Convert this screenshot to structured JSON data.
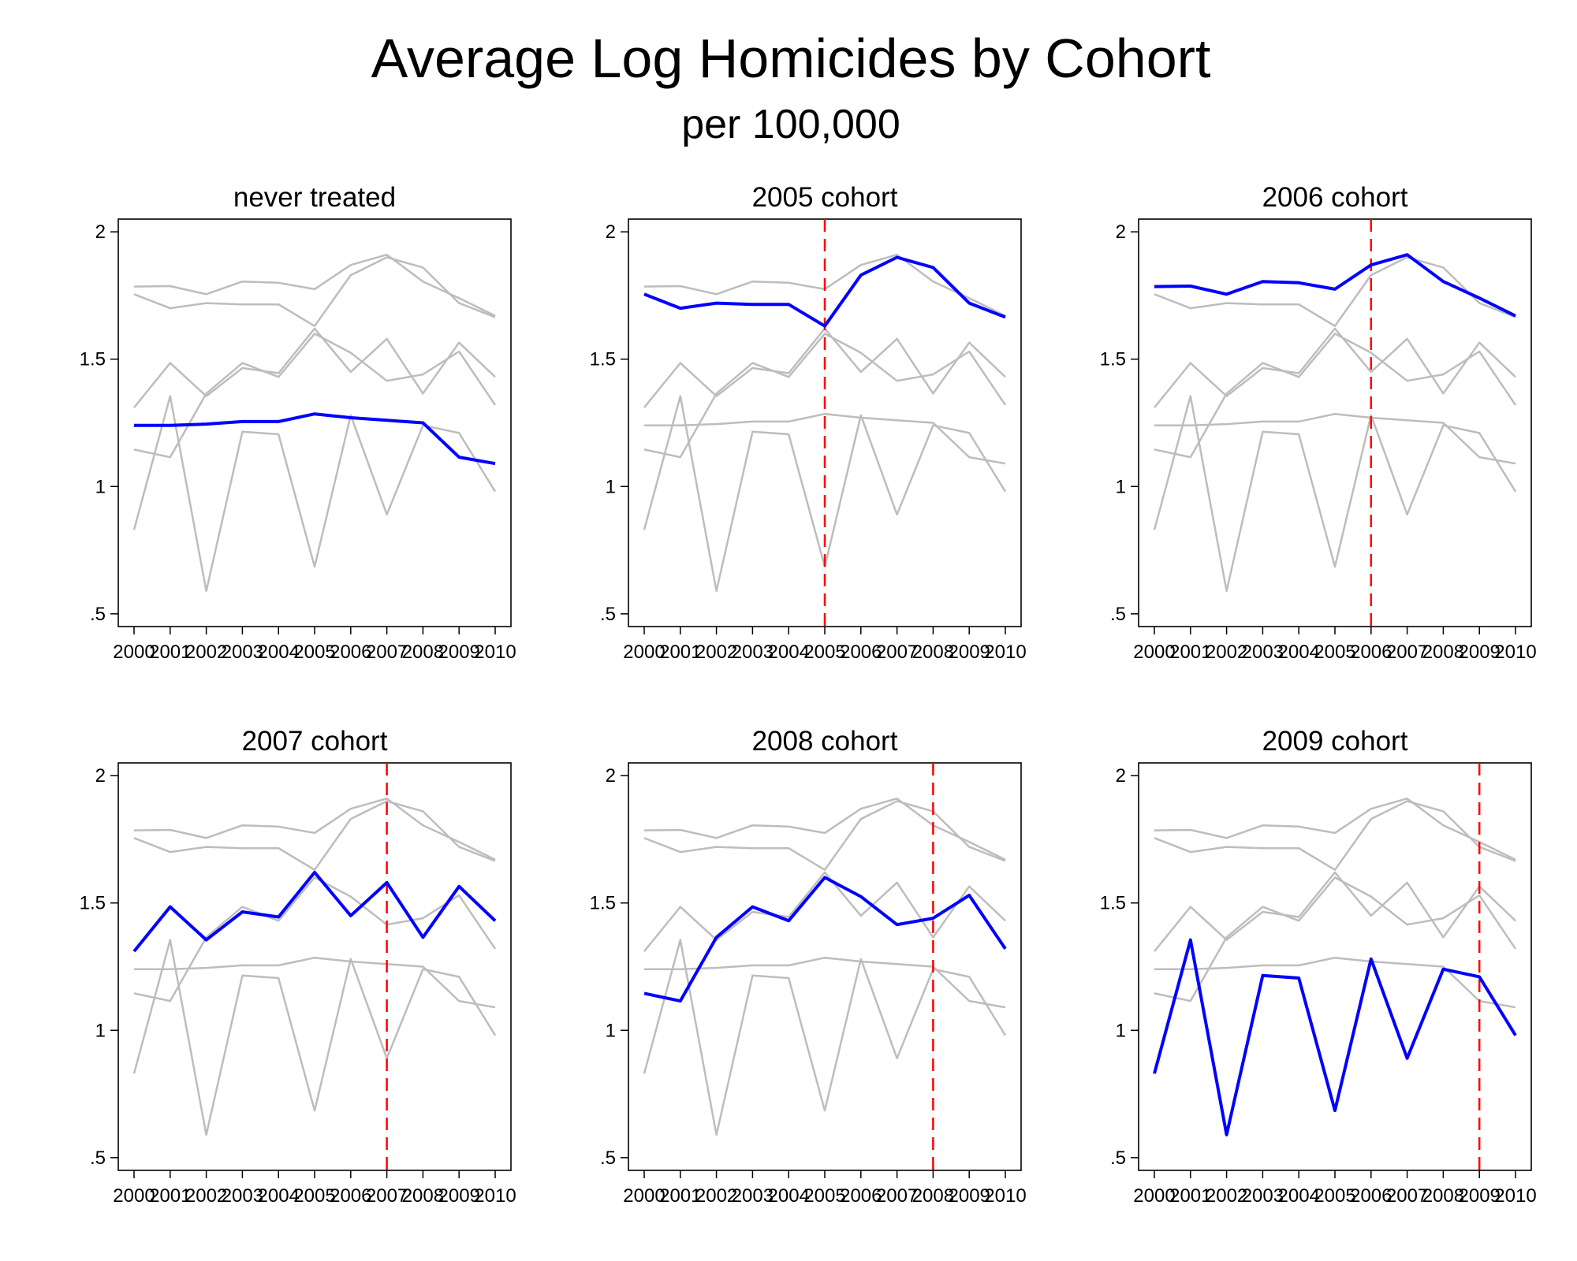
{
  "figure": {
    "title": "Average Log Homicides by Cohort",
    "subtitle": "per 100,000"
  },
  "colors": {
    "focus": "#0000ff",
    "background_series": "#bdbdbd",
    "treatment_line": "#ff0000",
    "axis": "#000000"
  },
  "chart_data": {
    "type": "line",
    "x": [
      2000,
      2001,
      2002,
      2003,
      2004,
      2005,
      2006,
      2007,
      2008,
      2009,
      2010
    ],
    "x_tick_labels": [
      "2000",
      "2001",
      "2002",
      "2003",
      "2004",
      "2005",
      "2006",
      "2007",
      "2008",
      "2009",
      "2010"
    ],
    "y_ticks": [
      0.5,
      1,
      1.5,
      2
    ],
    "y_tick_labels": [
      ".5",
      "1",
      "1.5",
      "2"
    ],
    "ylim": [
      0.45,
      2.05
    ],
    "grid": false,
    "series": [
      {
        "key": "never",
        "values": [
          1.24,
          1.24,
          1.245,
          1.255,
          1.255,
          1.285,
          1.27,
          1.26,
          1.25,
          1.115,
          1.09
        ]
      },
      {
        "key": "2005",
        "values": [
          1.755,
          1.7,
          1.72,
          1.715,
          1.715,
          1.63,
          1.83,
          1.9,
          1.86,
          1.72,
          1.665
        ]
      },
      {
        "key": "2006",
        "values": [
          1.785,
          1.787,
          1.755,
          1.805,
          1.8,
          1.775,
          1.87,
          1.91,
          1.805,
          1.74,
          1.67
        ]
      },
      {
        "key": "2007",
        "values": [
          1.31,
          1.485,
          1.355,
          1.465,
          1.445,
          1.62,
          1.45,
          1.58,
          1.365,
          1.565,
          1.43
        ]
      },
      {
        "key": "2008",
        "values": [
          1.145,
          1.115,
          1.365,
          1.485,
          1.43,
          1.6,
          1.525,
          1.415,
          1.44,
          1.53,
          1.32
        ]
      },
      {
        "key": "2009",
        "values": [
          0.83,
          1.355,
          0.59,
          1.215,
          1.205,
          0.685,
          1.28,
          0.89,
          1.24,
          1.21,
          0.98
        ]
      }
    ],
    "panels": [
      {
        "title": "never treated",
        "focus": "never",
        "treatment_year": null
      },
      {
        "title": "2005 cohort",
        "focus": "2005",
        "treatment_year": 2005
      },
      {
        "title": "2006 cohort",
        "focus": "2006",
        "treatment_year": 2006
      },
      {
        "title": "2007 cohort",
        "focus": "2007",
        "treatment_year": 2007
      },
      {
        "title": "2008 cohort",
        "focus": "2008",
        "treatment_year": 2008
      },
      {
        "title": "2009 cohort",
        "focus": "2009",
        "treatment_year": 2009
      }
    ]
  }
}
